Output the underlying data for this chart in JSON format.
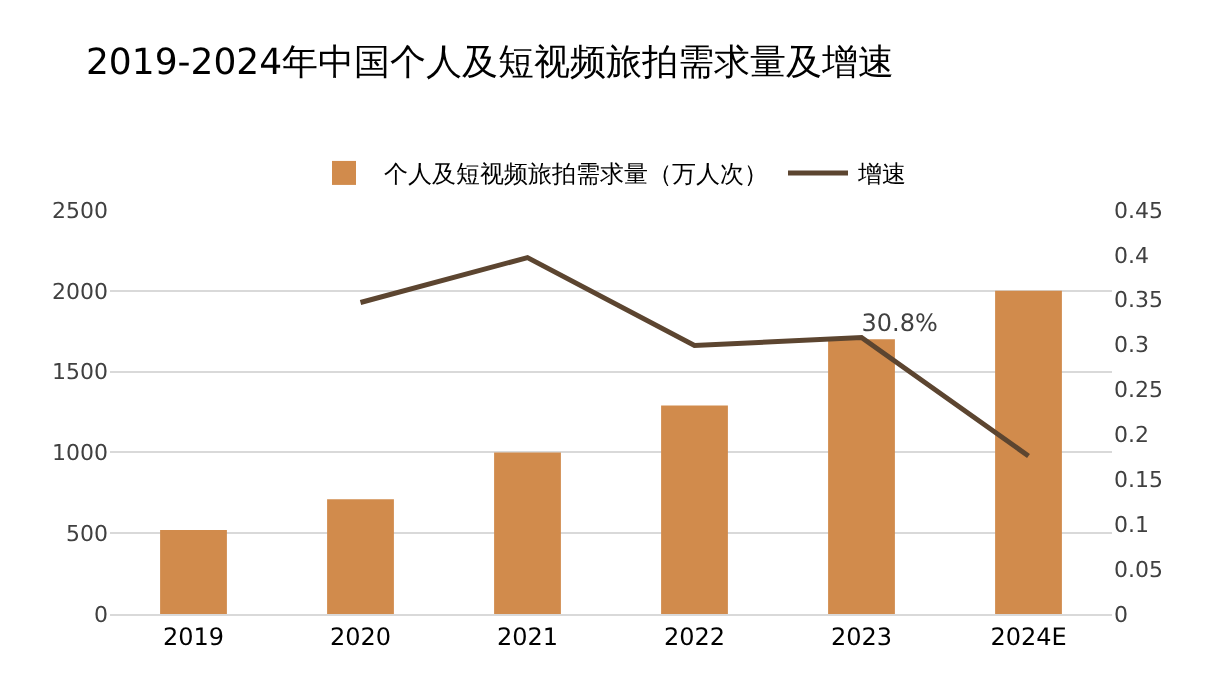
{
  "chart_data": {
    "type": "bar",
    "title": "2019-2024年中国个人及短视频旅拍需求量及增速",
    "categories": [
      "2019",
      "2020",
      "2021",
      "2022",
      "2023",
      "2024E"
    ],
    "series": [
      {
        "name": "个人及短视频旅拍需求量（万人次）",
        "color": "#d18b4c",
        "values": [
          520,
          710,
          1000,
          1290,
          1700,
          2000
        ]
      },
      {
        "name": "增速",
        "type": "line",
        "axis": "y2",
        "color": "#5c4530",
        "values": [
          null,
          0.347,
          0.397,
          0.299,
          0.308,
          0.176
        ],
        "value_labels": [
          null,
          null,
          null,
          null,
          "30.8%",
          null
        ]
      }
    ],
    "ylim": [
      0,
      2500
    ],
    "yticks": [
      0,
      500,
      1000,
      1500,
      2000,
      2500
    ],
    "y2lim": [
      0,
      0.45
    ],
    "y2ticks": [
      0,
      0.05,
      0.1,
      0.15,
      0.2,
      0.25,
      0.3,
      0.35,
      0.4,
      0.45
    ],
    "grid": "y",
    "legend": "top",
    "marker": "none",
    "line_style": "solid"
  }
}
